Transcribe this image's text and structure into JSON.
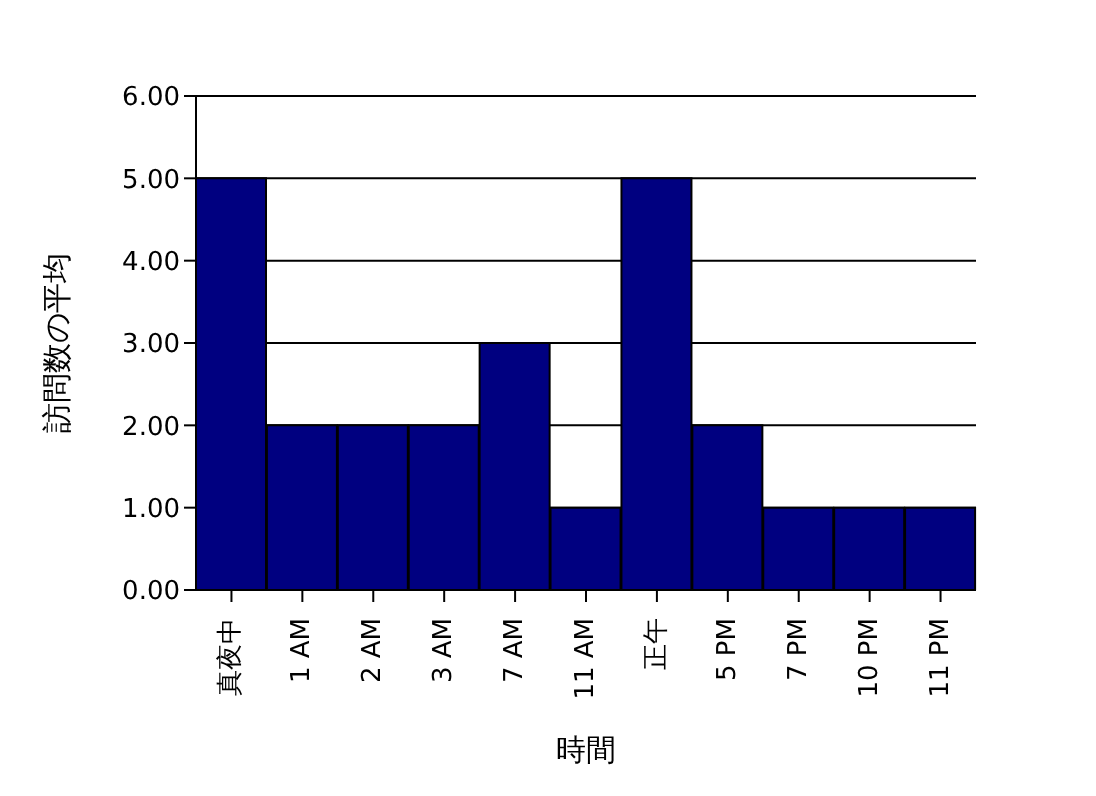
{
  "chart_data": {
    "type": "bar",
    "xlabel": "時間",
    "ylabel": "訪問数の平均",
    "categories": [
      "真夜中",
      "1 AM",
      "2 AM",
      "3 AM",
      "7 AM",
      "11 AM",
      "正午",
      "5 PM",
      "7 PM",
      "10 PM",
      "11 PM"
    ],
    "values": [
      5,
      2,
      2,
      2,
      3,
      1,
      5,
      2,
      1,
      1,
      1
    ],
    "color": "#000080",
    "ylim": [
      0,
      6
    ],
    "yticks": [
      {
        "value": 0,
        "label": "0.00"
      },
      {
        "value": 1,
        "label": "1.00"
      },
      {
        "value": 2,
        "label": "2.00"
      },
      {
        "value": 3,
        "label": "3.00"
      },
      {
        "value": 4,
        "label": "4.00"
      },
      {
        "value": 5,
        "label": "5.00"
      },
      {
        "value": 6,
        "label": "6.00"
      }
    ],
    "grid": "y",
    "legend": false
  }
}
